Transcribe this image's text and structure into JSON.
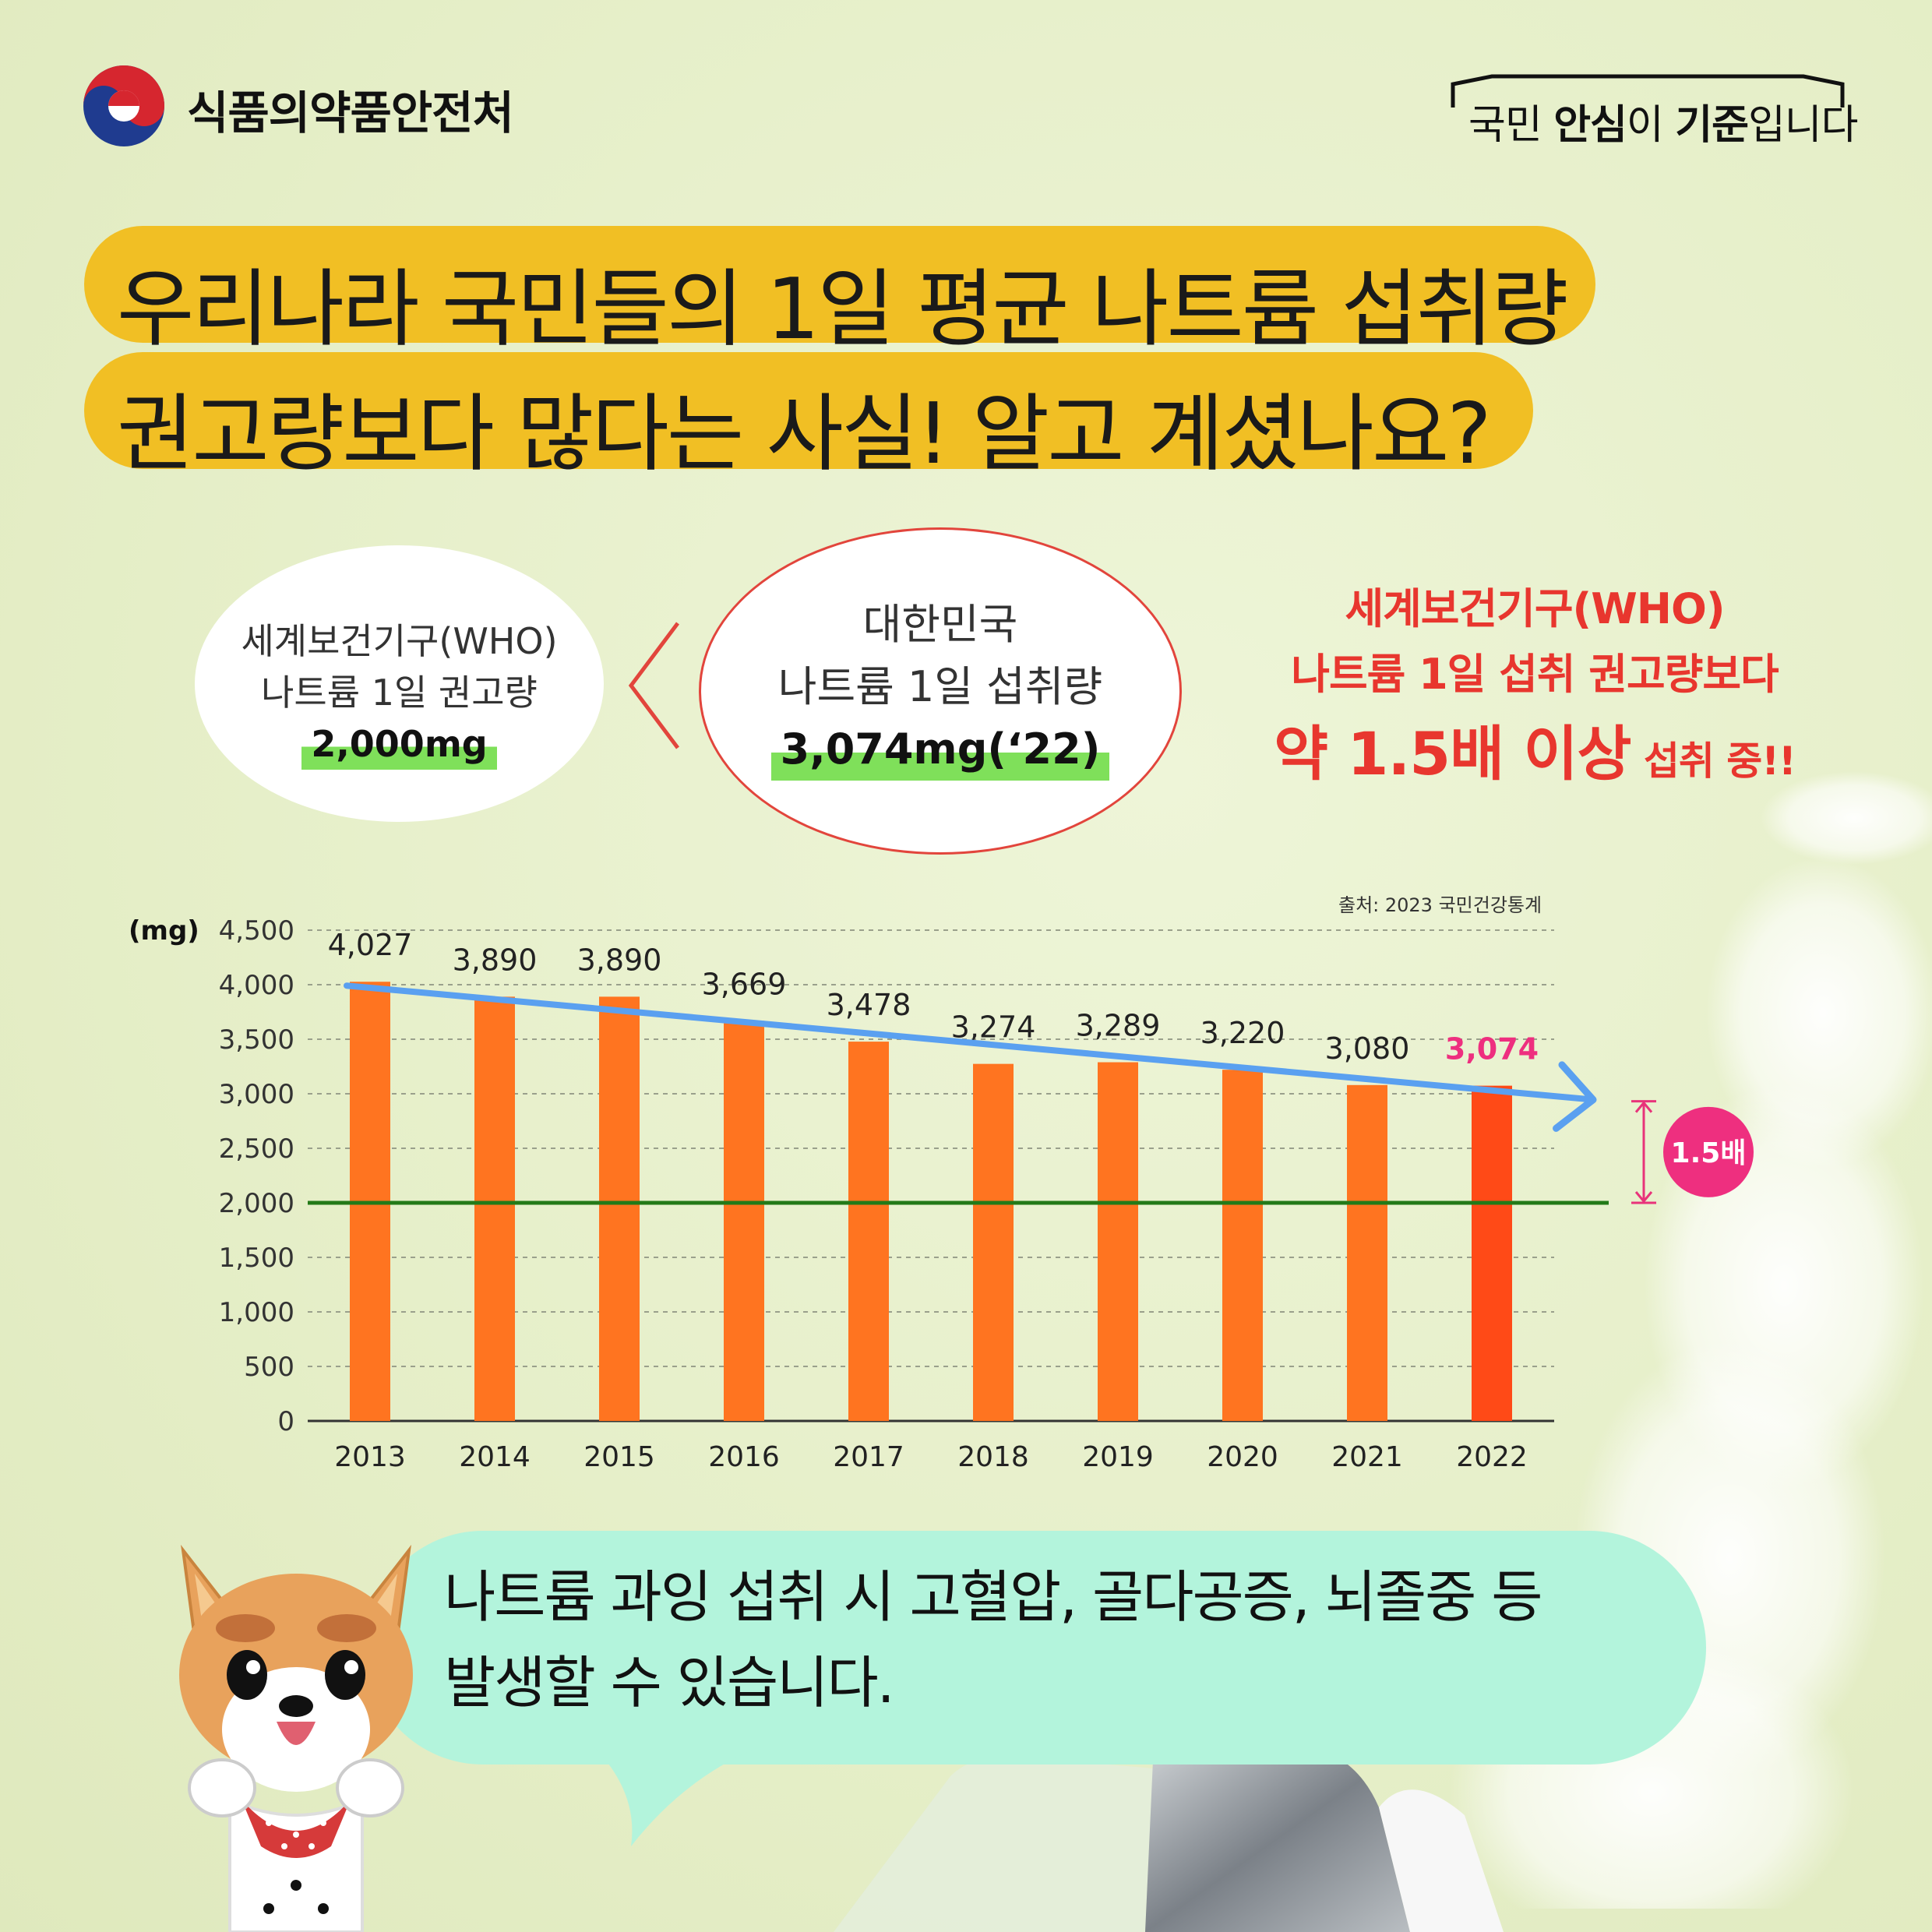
{
  "header": {
    "ministry_name": "식품의약품안전처",
    "slogan_prefix": "국민 ",
    "slogan_bold1": "안심",
    "slogan_mid": "이 ",
    "slogan_bold2": "기준",
    "slogan_suffix": "입니다"
  },
  "headline": {
    "line1": "우리나라 국민들의 1일 평균 나트륨 섭취량",
    "line2": "권고량보다 많다는 사실! 알고 계셨나요?"
  },
  "who_box": {
    "line1": "세계보건기구(WHO)",
    "line2": "나트륨 1일 권고량",
    "value": "2,000mg"
  },
  "korea_box": {
    "line1": "대한민국",
    "line2": "나트륨 1일 섭취량",
    "value": "3,074mg(‘22)"
  },
  "callout": {
    "line1": "세계보건기구(WHO)",
    "line2": "나트륨 1일 섭취 권고량보다",
    "line3_big": "약 1.5배 이상",
    "line3_small": " 섭취 중!!"
  },
  "chart_source": "출처: 2023 국민건강통계",
  "chart_data": {
    "type": "bar",
    "ylabel": "(mg)",
    "ylim": [
      0,
      4500
    ],
    "yticks": [
      0,
      500,
      1000,
      1500,
      2000,
      2500,
      3000,
      3500,
      4000,
      4500
    ],
    "ytick_labels": [
      "0",
      "500",
      "1,000",
      "1,500",
      "2,000",
      "2,500",
      "3,000",
      "3,500",
      "4,000",
      "4,500"
    ],
    "categories": [
      "2013",
      "2014",
      "2015",
      "2016",
      "2017",
      "2018",
      "2019",
      "2020",
      "2021",
      "2022"
    ],
    "values": [
      4027,
      3890,
      3890,
      3669,
      3478,
      3274,
      3289,
      3220,
      3080,
      3074
    ],
    "value_labels": [
      "4,027",
      "3,890",
      "3,890",
      "3,669",
      "3,478",
      "3,274",
      "3,289",
      "3,220",
      "3,080",
      "3,074"
    ],
    "reference_line": 2000,
    "ratio_badge": "1.5배",
    "grid": "horizontal dashed",
    "bar_color": "#ff7420",
    "highlight_bar_color": "#ff4a17",
    "highlight_label_color": "#ee2f7f",
    "reference_color": "#237a18",
    "trend_color": "#5aa0f0"
  },
  "bubble": {
    "line1": "나트륨 과잉 섭취 시 고혈압, 골다공증, 뇌졸중 등",
    "line2": "발생할 수 있습니다."
  }
}
